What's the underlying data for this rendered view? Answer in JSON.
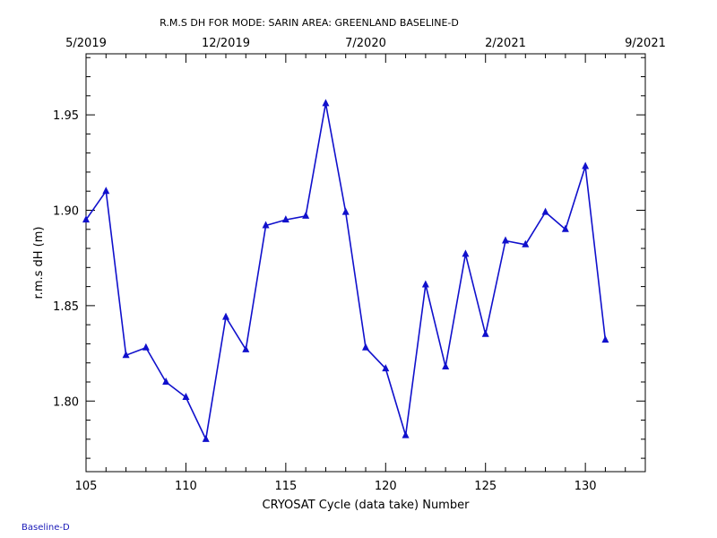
{
  "chart_data": {
    "type": "line",
    "title": "R.M.S DH FOR MODE: SARIN AREA: GREENLAND BASELINE-D",
    "xlabel": "CRYOSAT Cycle (data take) Number",
    "ylabel": "r.m.s dH (m)",
    "xlim": [
      105,
      133
    ],
    "ylim": [
      1.763,
      1.982
    ],
    "x_ticks": [
      105,
      110,
      115,
      120,
      125,
      130
    ],
    "y_ticks": [
      1.8,
      1.85,
      1.9,
      1.95
    ],
    "top_axis": {
      "ticks": [
        {
          "x": 105,
          "label": "5/2019"
        },
        {
          "x": 112,
          "label": "12/2019"
        },
        {
          "x": 119,
          "label": "7/2020"
        },
        {
          "x": 126,
          "label": "2/2021"
        },
        {
          "x": 133,
          "label": "9/2021"
        }
      ]
    },
    "grid": false,
    "line_color": "#1010cc",
    "marker": "triangle",
    "series": [
      {
        "x": [
          105,
          106,
          107,
          108,
          109,
          110,
          111,
          112,
          113,
          114,
          115,
          116,
          117,
          118,
          119,
          120,
          121,
          122,
          123,
          124,
          125,
          126,
          127,
          128,
          129,
          130,
          131
        ],
        "values": [
          1.895,
          1.91,
          1.824,
          1.828,
          1.81,
          1.802,
          1.78,
          1.844,
          1.827,
          1.892,
          1.895,
          1.897,
          1.956,
          1.899,
          1.828,
          1.817,
          1.782,
          1.861,
          1.818,
          1.877,
          1.835,
          1.884,
          1.882,
          1.899,
          1.89,
          1.923,
          1.832
        ]
      }
    ]
  },
  "footer": {
    "label": "Baseline-D"
  }
}
